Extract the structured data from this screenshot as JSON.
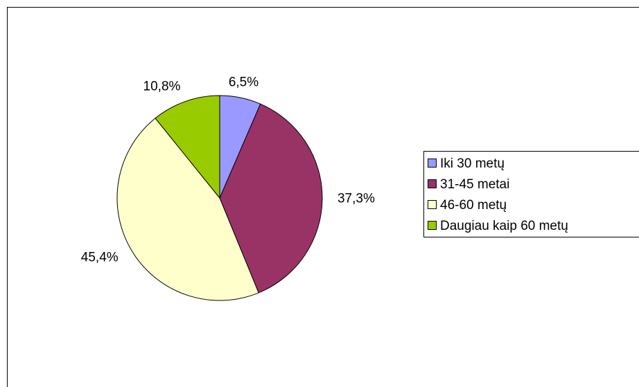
{
  "chart_data": {
    "type": "pie",
    "categories": [
      "Iki 30 metų",
      "31-45 metai",
      "46-60 metų",
      "Daugiau kaip 60 metų"
    ],
    "values": [
      6.5,
      37.3,
      45.4,
      10.8
    ],
    "value_labels": [
      "6,5%",
      "37,3%",
      "45,4%",
      "10,8%"
    ],
    "colors": [
      "#9999ff",
      "#993366",
      "#ffffcc",
      "#99cc00"
    ],
    "legend": "right"
  }
}
